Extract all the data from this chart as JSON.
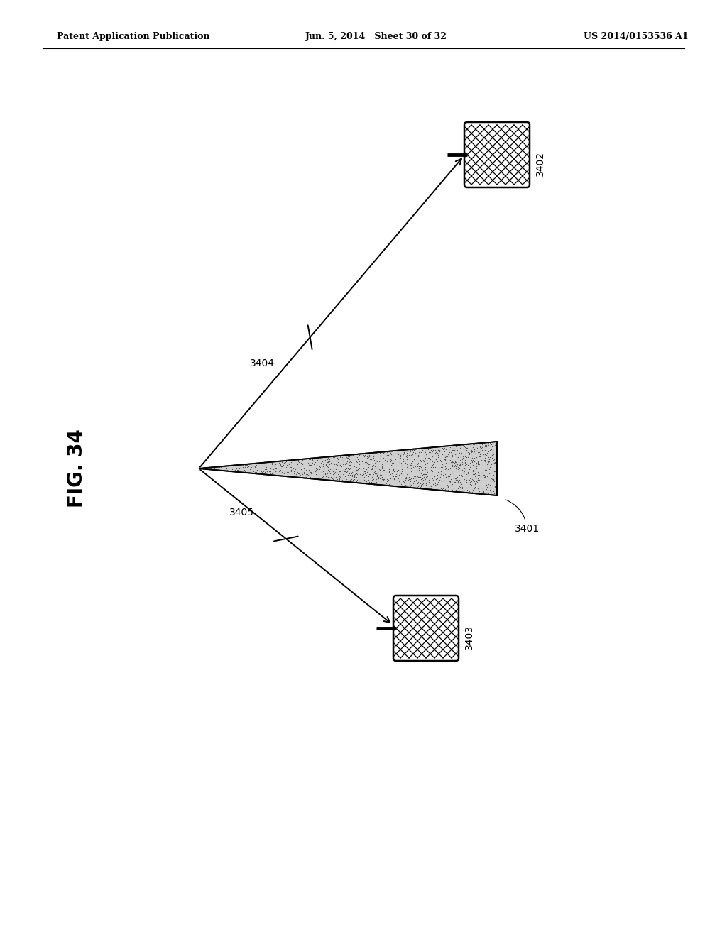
{
  "header_left": "Patent Application Publication",
  "header_mid": "Jun. 5, 2014   Sheet 30 of 32",
  "header_right": "US 2014/0153536 A1",
  "fig_label": "FIG. 34",
  "beam_label": "3401",
  "arrow1_label": "3404",
  "arrow2_label": "3405",
  "box1_label": "3402",
  "box2_label": "3403",
  "bg_color": "#ffffff",
  "line_color": "#000000"
}
